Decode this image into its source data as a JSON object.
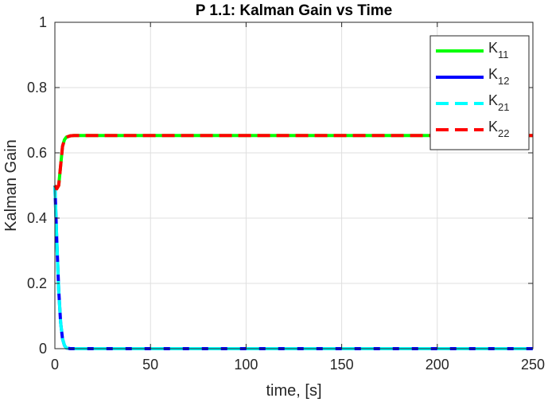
{
  "chart_data": {
    "type": "line",
    "title": "P 1.1: Kalman Gain vs Time",
    "xlabel": "time, [s]",
    "ylabel": "Kalman Gain",
    "xlim": [
      0,
      250
    ],
    "ylim": [
      0,
      1
    ],
    "xticks": [
      0,
      50,
      100,
      150,
      200,
      250
    ],
    "yticks": [
      0,
      0.2,
      0.4,
      0.6,
      0.8,
      1
    ],
    "xtick_labels": [
      "0",
      "50",
      "100",
      "150",
      "200",
      "250"
    ],
    "ytick_labels": [
      "0",
      "0.2",
      "0.4",
      "0.6",
      "0.8",
      "1"
    ],
    "grid": true,
    "legend_position": "top-right",
    "series": [
      {
        "name": "K11",
        "label_main": "K",
        "label_sub": "11",
        "color": "#00ff00",
        "dash": "solid",
        "x": [
          0,
          1,
          2,
          3,
          4,
          5,
          6,
          7,
          8,
          10,
          15,
          20,
          50,
          100,
          150,
          200,
          250
        ],
        "y": [
          0.5,
          0.49,
          0.5,
          0.56,
          0.62,
          0.64,
          0.648,
          0.65,
          0.652,
          0.653,
          0.653,
          0.653,
          0.653,
          0.653,
          0.653,
          0.653,
          0.653
        ]
      },
      {
        "name": "K12",
        "label_main": "K",
        "label_sub": "12",
        "color": "#0000ff",
        "dash": "solid",
        "x": [
          0,
          1,
          2,
          3,
          4,
          5,
          6,
          7,
          8,
          10,
          15,
          20,
          50,
          100,
          150,
          200,
          250
        ],
        "y": [
          0.5,
          0.33,
          0.18,
          0.08,
          0.03,
          0.01,
          0.002,
          0.001,
          0,
          0,
          0,
          0,
          0,
          0,
          0,
          0,
          0
        ]
      },
      {
        "name": "K21",
        "label_main": "K",
        "label_sub": "21",
        "color": "#00ffff",
        "dash": "dashed",
        "x": [
          0,
          1,
          2,
          3,
          4,
          5,
          6,
          7,
          8,
          10,
          15,
          20,
          50,
          100,
          150,
          200,
          250
        ],
        "y": [
          0.5,
          0.33,
          0.18,
          0.08,
          0.03,
          0.01,
          0.002,
          0.001,
          0,
          0,
          0,
          0,
          0,
          0,
          0,
          0,
          0
        ]
      },
      {
        "name": "K22",
        "label_main": "K",
        "label_sub": "22",
        "color": "#ff0000",
        "dash": "dashed",
        "x": [
          0,
          1,
          2,
          3,
          4,
          5,
          6,
          7,
          8,
          10,
          15,
          20,
          50,
          100,
          150,
          200,
          250
        ],
        "y": [
          0.5,
          0.49,
          0.5,
          0.56,
          0.62,
          0.64,
          0.648,
          0.65,
          0.652,
          0.653,
          0.653,
          0.653,
          0.653,
          0.653,
          0.653,
          0.653,
          0.653
        ]
      }
    ]
  }
}
